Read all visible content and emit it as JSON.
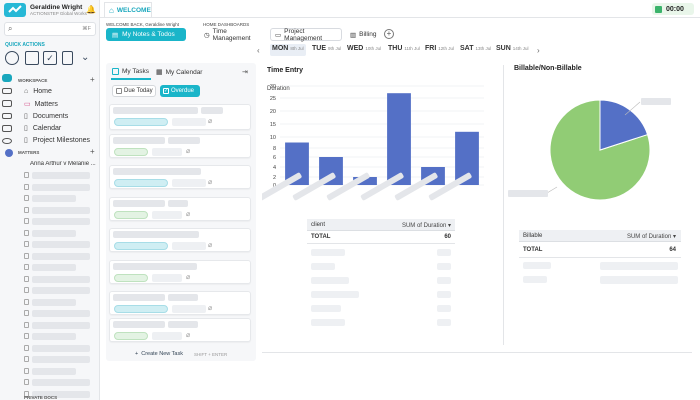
{
  "user": {
    "name": "Geraldine Wright",
    "subtitle": "ACTIONSTEP Global Works"
  },
  "timer": {
    "value": "00:00"
  },
  "search": {
    "shortcut": "⌘F"
  },
  "sidebar": {
    "quick_actions_label": "QUICK ACTIONS",
    "workspace_label": "WORKSPACE",
    "workspace_items": [
      "Home",
      "Matters",
      "Documents",
      "Calendar",
      "Project Milestones"
    ],
    "matters_label": "MATTERS",
    "first_matter": "Anna Arthur v Melanie ...",
    "private_docs_label": "PRIVATE DOCS"
  },
  "tabs": {
    "welcome": "WELCOME"
  },
  "header": {
    "welcome_back": "WELCOME BACK,",
    "user_first": "Geraldine Wright",
    "home_dashboards": "HOME DASHBOARDS"
  },
  "buttons": {
    "my_notes": "My Notes & Todos",
    "time_mgmt": "Time Management",
    "project_mgmt": "Project Management",
    "billing": "Billing"
  },
  "days": [
    {
      "name": "MON",
      "date": "8th Jul"
    },
    {
      "name": "TUE",
      "date": "9th Jul"
    },
    {
      "name": "WED",
      "date": "10th Jul"
    },
    {
      "name": "THU",
      "date": "11th Jul"
    },
    {
      "name": "FRI",
      "date": "12th Jul"
    },
    {
      "name": "SAT",
      "date": "13th Jul"
    },
    {
      "name": "SUN",
      "date": "14th Jul"
    }
  ],
  "tasks": {
    "my_tasks": "My Tasks",
    "my_calendar": "My Calendar",
    "due_today": "Due Today",
    "overdue": "Overdue",
    "create": "Create New Task",
    "shortcut": "SHIFT + ENTER"
  },
  "time_entry": {
    "title": "Time Entry",
    "client_col": "client",
    "sum_col": "SUM of Duration",
    "total_label": "TOTAL",
    "total_value": "60"
  },
  "billable": {
    "title": "Billable/Non-Billable",
    "col": "Billable",
    "sum_col": "SUM of Duration",
    "total_label": "TOTAL",
    "total_value": "64"
  },
  "chart_data": [
    {
      "type": "bar",
      "title": "",
      "ylabel": "Duration",
      "ylim": [
        0,
        30
      ],
      "yticks": [
        0,
        2,
        4,
        6,
        8,
        10,
        15,
        20,
        25,
        30
      ],
      "values": [
        9,
        6,
        2,
        27,
        4,
        12
      ],
      "color": "#5470c6"
    },
    {
      "type": "pie",
      "values": [
        80,
        20
      ],
      "colors": [
        "#91cc75",
        "#5470c6"
      ]
    }
  ],
  "colors": {
    "accent": "#1ab5c9",
    "bar": "#5470c6",
    "pie_green": "#91cc75"
  }
}
